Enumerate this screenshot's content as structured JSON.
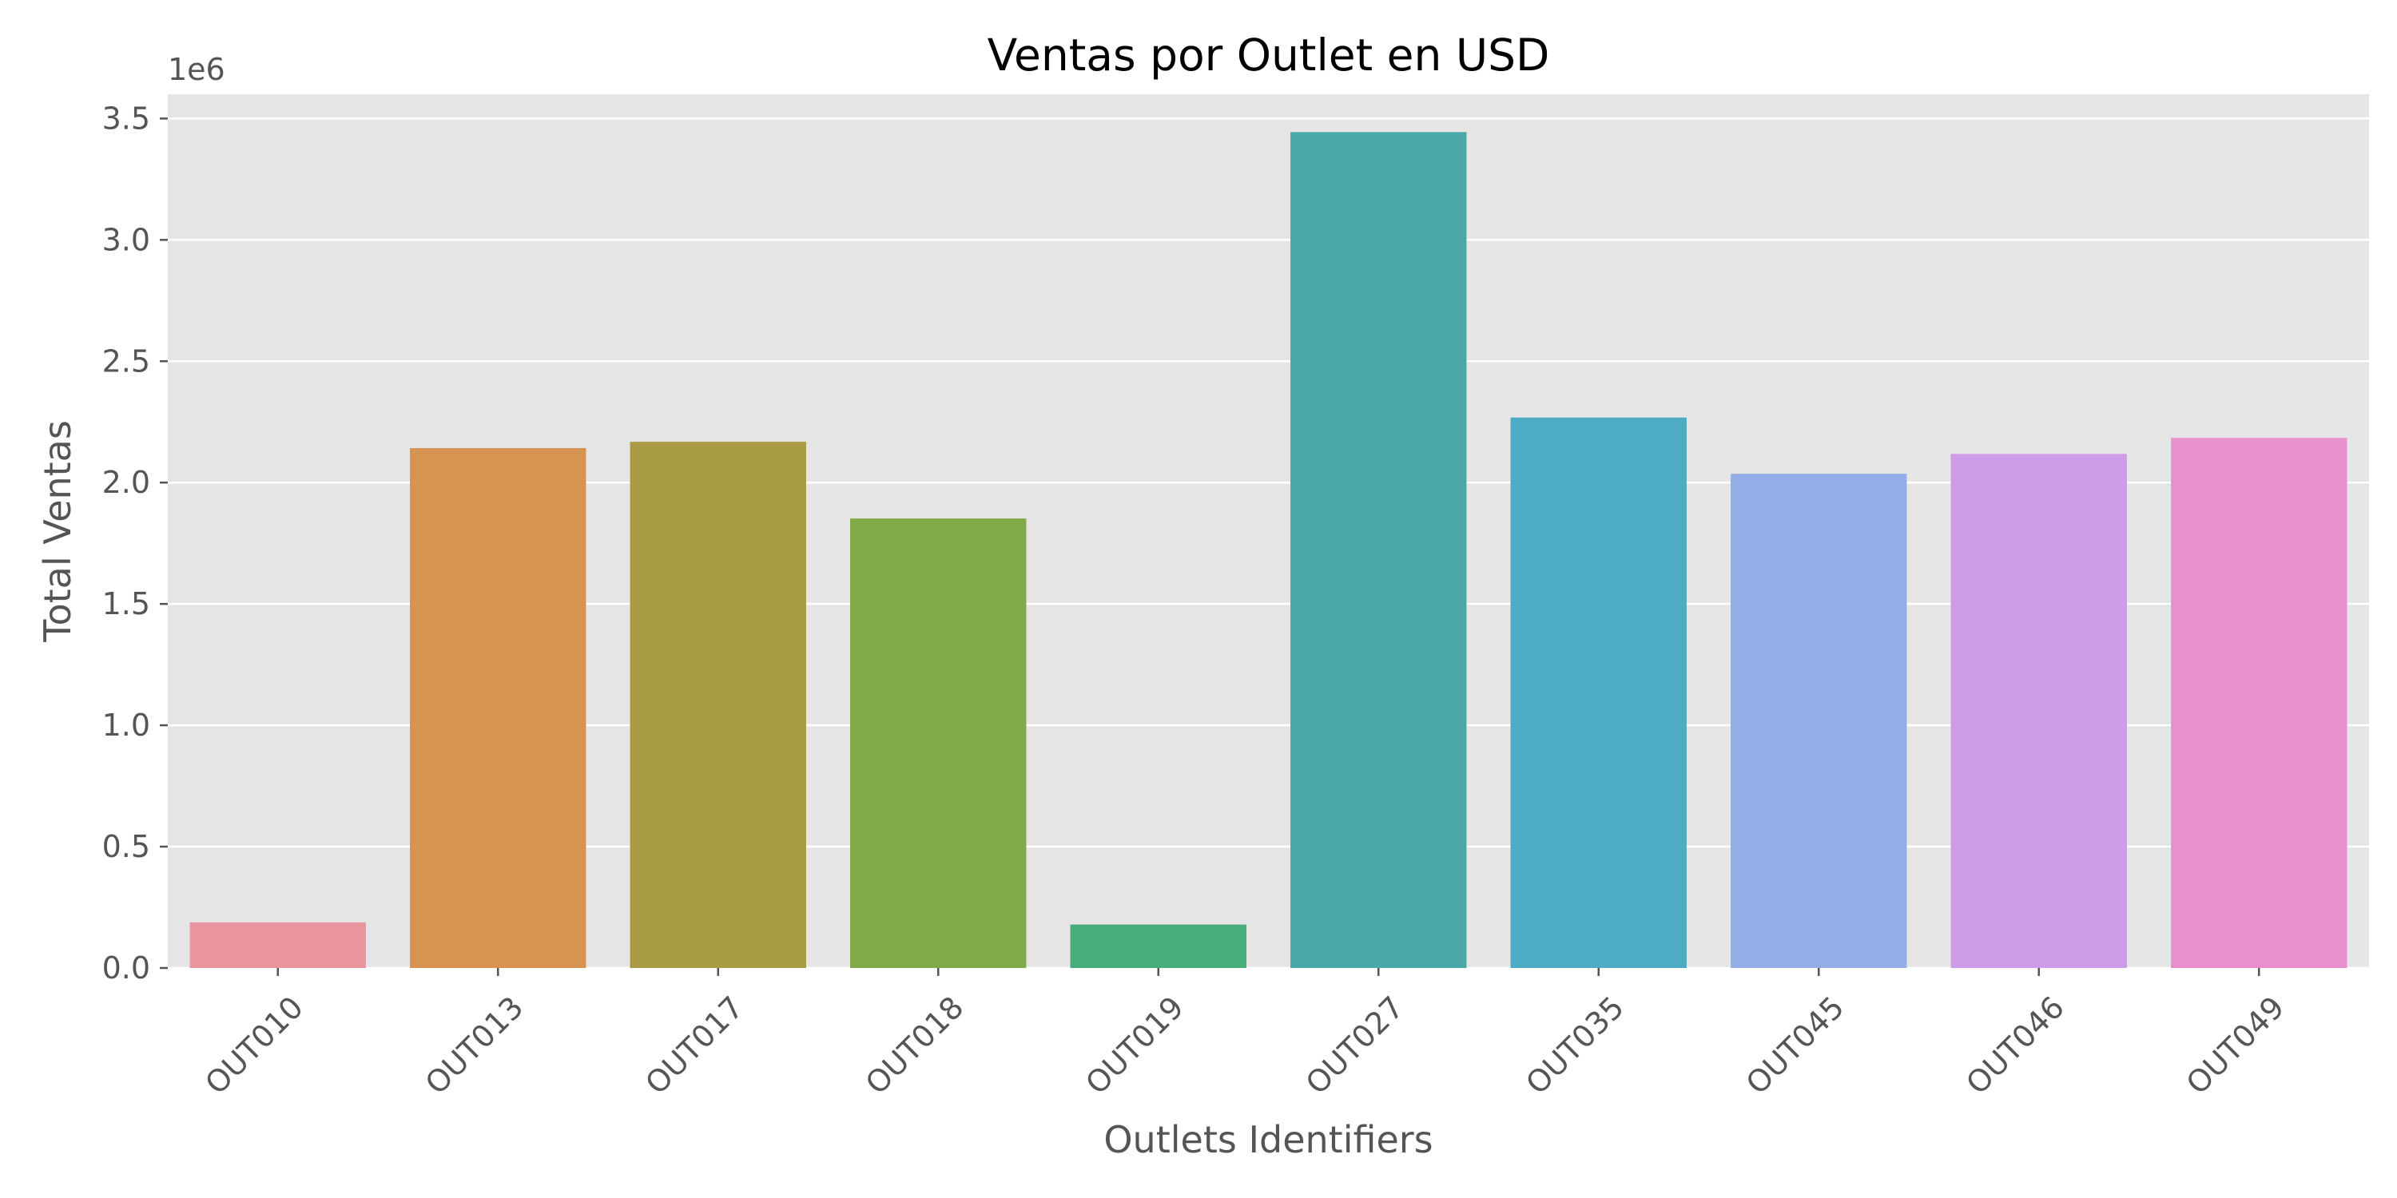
{
  "chart_data": {
    "type": "bar",
    "title": "Ventas por Outlet en USD",
    "xlabel": "Outlets Identifiers",
    "ylabel": "Total Ventas",
    "y_offset_label": "1e6",
    "y_scale": 1000000,
    "categories": [
      "OUT010",
      "OUT013",
      "OUT017",
      "OUT018",
      "OUT019",
      "OUT027",
      "OUT035",
      "OUT045",
      "OUT046",
      "OUT049"
    ],
    "values": [
      188000,
      2142000,
      2168000,
      1852000,
      179000,
      3444000,
      2268000,
      2036000,
      2118000,
      2184000
    ],
    "colors": [
      "#e8959e",
      "#d79351",
      "#a99c45",
      "#80a947",
      "#4aae7c",
      "#4aa9a6",
      "#4eabc4",
      "#93ade6",
      "#ce9be8",
      "#e890cc"
    ],
    "ylim": [
      0,
      3600000
    ],
    "yticks": [
      0,
      500000,
      1000000,
      1500000,
      2000000,
      2500000,
      3000000,
      3500000
    ],
    "ytick_labels": [
      "0.0",
      "0.5",
      "1.0",
      "1.5",
      "2.0",
      "2.5",
      "3.0",
      "3.5"
    ],
    "grid": true,
    "legend": "none",
    "background": "#e5e5e5"
  }
}
